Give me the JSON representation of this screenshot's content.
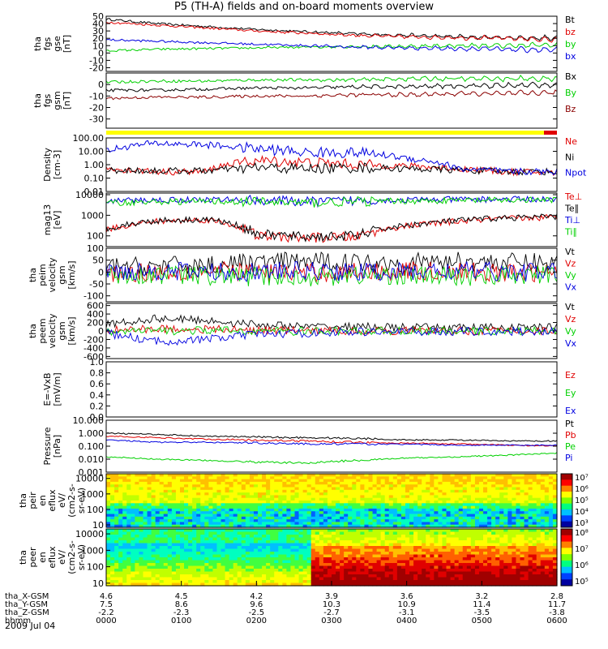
{
  "title": "P5 (TH-A) fields and on-board moments overview",
  "date": "2009 Jul 04",
  "colors": {
    "black": "#000000",
    "red": "#e00000",
    "green": "#00d000",
    "blue": "#0000e0",
    "darkred": "#8b0000",
    "yellow": "#ffff00"
  },
  "chart_data": [
    {
      "type": "line",
      "ylabel": [
        "tha",
        "fgs",
        "gse",
        "[nT]"
      ],
      "yticks": [
        "50",
        "40",
        "30",
        "20",
        "10",
        "0",
        "-10",
        "-20"
      ],
      "ylim": [
        -25,
        50
      ],
      "series": [
        {
          "name": "Bt",
          "color": "black",
          "values": [
            46,
            40,
            36,
            32,
            29,
            26,
            24,
            22,
            21,
            20
          ]
        },
        {
          "name": "bz",
          "color": "red",
          "values": [
            42,
            38,
            34,
            30,
            27,
            24,
            22,
            21,
            20,
            18
          ]
        },
        {
          "name": "by",
          "color": "green",
          "values": [
            3,
            5,
            6,
            7,
            8,
            9,
            9,
            10,
            10,
            11
          ]
        },
        {
          "name": "bx",
          "color": "blue",
          "values": [
            18,
            16,
            14,
            12,
            10,
            8,
            7,
            6,
            5,
            4
          ]
        }
      ]
    },
    {
      "type": "line",
      "ylabel": [
        "tha",
        "fgs",
        "gsm",
        "[nT]"
      ],
      "yticks": [
        "0",
        "-10",
        "-20",
        "-30"
      ],
      "ylim": [
        -38,
        10
      ],
      "series": [
        {
          "name": "Bx",
          "color": "black",
          "values": [
            -5,
            -5,
            -4,
            -3,
            -3,
            -2,
            -2,
            -1,
            -1,
            0
          ]
        },
        {
          "name": "By",
          "color": "green",
          "values": [
            2,
            3,
            3,
            4,
            4,
            4,
            5,
            5,
            5,
            5
          ]
        },
        {
          "name": "Bz",
          "color": "darkred",
          "values": [
            -12,
            -11,
            -11,
            -10,
            -10,
            -9,
            -9,
            -8,
            -8,
            -7
          ]
        }
      ]
    },
    {
      "type": "line",
      "ylabel": [
        "Density",
        "[cm-3]"
      ],
      "yticks": [
        "100.00",
        "10.00",
        "1.00",
        "0.10",
        "0.01"
      ],
      "ylim": [
        0.01,
        100
      ],
      "log": true,
      "series": [
        {
          "name": "Ne",
          "color": "red",
          "values": [
            0.5,
            0.3,
            0.3,
            2,
            1.5,
            1,
            0.8,
            0.5,
            0.3,
            0.25
          ]
        },
        {
          "name": "Ni",
          "color": "black",
          "values": [
            0.4,
            0.35,
            0.35,
            0.6,
            0.5,
            0.6,
            0.5,
            0.4,
            0.3,
            0.3
          ]
        },
        {
          "name": "Npot",
          "color": "blue",
          "values": [
            10,
            40,
            30,
            15,
            8,
            8,
            3,
            0.5,
            0.3,
            0.3
          ]
        }
      ]
    },
    {
      "type": "line",
      "ylabel": [
        "mag13",
        "[eV]"
      ],
      "yticks": [
        "10000",
        "1000",
        "100"
      ],
      "ylim": [
        30,
        12000
      ],
      "log": true,
      "series": [
        {
          "name": "Te⊥",
          "color": "red",
          "values": [
            200,
            500,
            600,
            100,
            80,
            90,
            300,
            500,
            700,
            800
          ]
        },
        {
          "name": "Te∥",
          "color": "black",
          "values": [
            220,
            550,
            650,
            120,
            90,
            100,
            320,
            550,
            750,
            850
          ]
        },
        {
          "name": "Ti⊥",
          "color": "blue",
          "values": [
            5000,
            5500,
            5800,
            5500,
            4500,
            5200,
            5600,
            5800,
            6000,
            6000
          ]
        },
        {
          "name": "Ti∥",
          "color": "green",
          "values": [
            4000,
            4500,
            4800,
            4600,
            4000,
            4600,
            5000,
            5200,
            5400,
            5500
          ]
        }
      ]
    },
    {
      "type": "line",
      "ylabel": [
        "tha",
        "peim",
        "velocity",
        "gsm",
        "[km/s]"
      ],
      "yticks": [
        "100",
        "50",
        "0",
        "-50",
        "-100"
      ],
      "ylim": [
        -125,
        100
      ],
      "series": [
        {
          "name": "Vt",
          "color": "black",
          "values": [
            20,
            25,
            30,
            40,
            45,
            40,
            40,
            45,
            40,
            40
          ]
        },
        {
          "name": "Vz",
          "color": "red",
          "values": [
            -5,
            0,
            5,
            0,
            -5,
            0,
            5,
            0,
            -5,
            0
          ]
        },
        {
          "name": "Vy",
          "color": "green",
          "values": [
            -10,
            -10,
            -15,
            -20,
            -20,
            -15,
            -15,
            -20,
            -15,
            -10
          ]
        },
        {
          "name": "Vx",
          "color": "blue",
          "values": [
            5,
            5,
            0,
            0,
            5,
            0,
            0,
            5,
            0,
            0
          ]
        }
      ]
    },
    {
      "type": "line",
      "ylabel": [
        "tha",
        "peem",
        "velocity",
        "gsm",
        "[km/s]"
      ],
      "yticks": [
        "600",
        "400",
        "200",
        "0",
        "-200",
        "-400",
        "-600"
      ],
      "ylim": [
        -650,
        650
      ],
      "series": [
        {
          "name": "Vt",
          "color": "black",
          "values": [
            150,
            300,
            250,
            150,
            100,
            100,
            80,
            80,
            80,
            80
          ]
        },
        {
          "name": "Vz",
          "color": "red",
          "values": [
            20,
            50,
            40,
            20,
            10,
            0,
            10,
            0,
            10,
            0
          ]
        },
        {
          "name": "Vy",
          "color": "green",
          "values": [
            -20,
            0,
            10,
            0,
            -10,
            0,
            0,
            -10,
            0,
            0
          ]
        },
        {
          "name": "Vx",
          "color": "blue",
          "values": [
            -50,
            -250,
            -200,
            -80,
            -50,
            -20,
            -20,
            -10,
            -10,
            -10
          ]
        }
      ]
    },
    {
      "type": "line",
      "ylabel": [
        "E=-VxB",
        "[mV/m]"
      ],
      "yticks": [
        "1.0",
        "0.8",
        "0.6",
        "0.4",
        "0.2",
        "0.0"
      ],
      "ylim": [
        0,
        1
      ],
      "series": [
        {
          "name": "Ez",
          "color": "red",
          "values": []
        },
        {
          "name": "Ey",
          "color": "green",
          "values": []
        },
        {
          "name": "Ex",
          "color": "blue",
          "values": []
        }
      ]
    },
    {
      "type": "line",
      "ylabel": [
        "Pressure",
        "[nPa]"
      ],
      "yticks": [
        "10.000",
        "1.000",
        "0.100",
        "0.010",
        "0.001"
      ],
      "ylim": [
        0.001,
        10
      ],
      "log": true,
      "series": [
        {
          "name": "Pt",
          "color": "black",
          "values": [
            1.0,
            0.8,
            0.6,
            0.5,
            0.45,
            0.4,
            0.3,
            0.3,
            0.25,
            0.25
          ]
        },
        {
          "name": "Pb",
          "color": "red",
          "values": [
            0.6,
            0.45,
            0.35,
            0.3,
            0.25,
            0.2,
            0.17,
            0.15,
            0.12,
            0.1
          ]
        },
        {
          "name": "Pe",
          "color": "green",
          "values": [
            0.015,
            0.01,
            0.008,
            0.006,
            0.005,
            0.008,
            0.012,
            0.015,
            0.02,
            0.03
          ]
        },
        {
          "name": "Pi",
          "color": "blue",
          "values": [
            0.3,
            0.2,
            0.2,
            0.18,
            0.15,
            0.15,
            0.14,
            0.12,
            0.12,
            0.12
          ]
        }
      ]
    },
    {
      "type": "heatmap",
      "ylabel": [
        "tha",
        "peir",
        "en",
        "eflux",
        "eV/",
        "(cm2-s-",
        "sr-eV)"
      ],
      "yticks": [
        "10000",
        "1000",
        "100",
        "10"
      ],
      "colorbar_ticks": [
        "10⁷",
        "10⁶",
        "10⁵",
        "10⁴",
        "10³"
      ]
    },
    {
      "type": "heatmap",
      "ylabel": [
        "tha",
        "peer",
        "en",
        "eflux",
        "eV/",
        "(cm2-s-",
        "sr-eV)"
      ],
      "yticks": [
        "10000",
        "1000",
        "100",
        "10"
      ],
      "colorbar_ticks": [
        "10⁸",
        "10⁷",
        "10⁶",
        "10⁵"
      ]
    }
  ],
  "xaxis": {
    "rows": [
      {
        "label": "tha_X-GSM",
        "values": [
          "4.6",
          "4.5",
          "4.2",
          "3.9",
          "3.6",
          "3.2",
          "2.8"
        ]
      },
      {
        "label": "tha_Y-GSM",
        "values": [
          "7.5",
          "8.6",
          "9.6",
          "10.3",
          "10.9",
          "11.4",
          "11.7"
        ]
      },
      {
        "label": "tha_Z-GSM",
        "values": [
          "-2.2",
          "-2.3",
          "-2.5",
          "-2.7",
          "-3.1",
          "-3.5",
          "-3.8"
        ]
      },
      {
        "label": "hhmm",
        "values": [
          "0000",
          "0100",
          "0200",
          "0300",
          "0400",
          "0500",
          "0600"
        ]
      }
    ]
  }
}
